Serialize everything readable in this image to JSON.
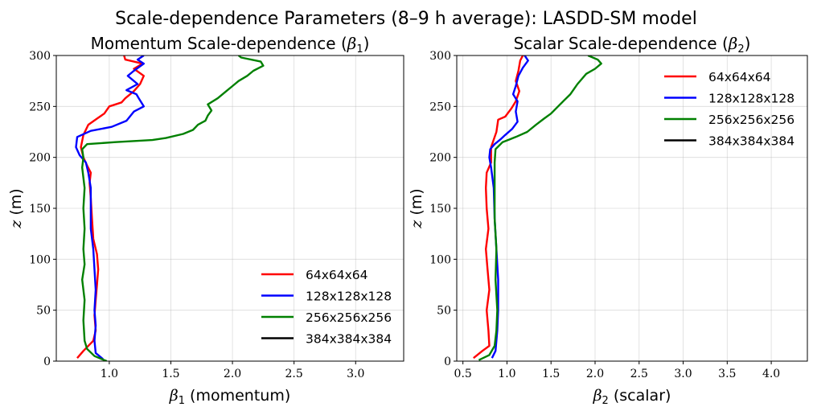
{
  "figure_title": "Scale-dependence Parameters (8–9 h average): LASDD-SM model",
  "colors": {
    "64x64x64": "#ff0000",
    "128x128x128": "#0000ff",
    "256x256x256": "#008000",
    "384x384x384": "#000000"
  },
  "chart_data": [
    {
      "type": "line",
      "title": "Momentum Scale-dependence (β1)",
      "title_text": "Momentum Scale-dependence (",
      "title_sym": "β",
      "title_sub": "1",
      "xlabel_sym": "β",
      "xlabel_sub": "1",
      "xlabel_text": " (momentum)",
      "ylabel_sym": "z",
      "ylabel_text": " (m)",
      "xlim": [
        0.57,
        3.39
      ],
      "ylim": [
        0,
        300
      ],
      "xticks": [
        1.0,
        1.5,
        2.0,
        2.5,
        3.0
      ],
      "xtick_labels": [
        "1.0",
        "1.5",
        "2.0",
        "2.5",
        "3.0"
      ],
      "yticks": [
        0,
        50,
        100,
        150,
        200,
        250,
        300
      ],
      "ytick_labels": [
        "0",
        "50",
        "100",
        "150",
        "200",
        "250",
        "300"
      ],
      "grid": true,
      "legend_position": "lower right",
      "series": [
        {
          "name": "64x64x64",
          "color": "#ff0000",
          "points": [
            [
              0.74,
              3
            ],
            [
              0.79,
              10
            ],
            [
              0.87,
              20
            ],
            [
              0.89,
              30
            ],
            [
              0.88,
              45
            ],
            [
              0.89,
              60
            ],
            [
              0.9,
              75
            ],
            [
              0.91,
              90
            ],
            [
              0.9,
              105
            ],
            [
              0.87,
              120
            ],
            [
              0.86,
              140
            ],
            [
              0.85,
              160
            ],
            [
              0.84,
              175
            ],
            [
              0.85,
              185
            ],
            [
              0.82,
              192
            ],
            [
              0.79,
              200
            ],
            [
              0.77,
              210
            ],
            [
              0.79,
              222
            ],
            [
              0.83,
              232
            ],
            [
              0.9,
              238
            ],
            [
              0.96,
              243
            ],
            [
              1.0,
              250
            ],
            [
              1.1,
              254
            ],
            [
              1.13,
              258
            ],
            [
              1.2,
              265
            ],
            [
              1.25,
              272
            ],
            [
              1.28,
              280
            ],
            [
              1.2,
              287
            ],
            [
              1.27,
              292
            ],
            [
              1.13,
              296
            ],
            [
              1.12,
              300
            ]
          ]
        },
        {
          "name": "128x128x128",
          "color": "#0000ff",
          "points": [
            [
              0.95,
              2
            ],
            [
              0.89,
              8
            ],
            [
              0.88,
              20
            ],
            [
              0.89,
              35
            ],
            [
              0.88,
              50
            ],
            [
              0.89,
              70
            ],
            [
              0.88,
              90
            ],
            [
              0.87,
              110
            ],
            [
              0.85,
              130
            ],
            [
              0.85,
              150
            ],
            [
              0.85,
              170
            ],
            [
              0.83,
              185
            ],
            [
              0.81,
              195
            ],
            [
              0.76,
              202
            ],
            [
              0.73,
              210
            ],
            [
              0.74,
              220
            ],
            [
              0.85,
              226
            ],
            [
              1.02,
              230
            ],
            [
              1.14,
              236
            ],
            [
              1.2,
              245
            ],
            [
              1.28,
              250
            ],
            [
              1.24,
              258
            ],
            [
              1.22,
              262
            ],
            [
              1.14,
              266
            ],
            [
              1.23,
              272
            ],
            [
              1.15,
              280
            ],
            [
              1.2,
              285
            ],
            [
              1.28,
              292
            ],
            [
              1.23,
              296
            ],
            [
              1.28,
              300
            ]
          ]
        },
        {
          "name": "256x256x256",
          "color": "#008000",
          "points": [
            [
              0.98,
              0
            ],
            [
              0.88,
              5
            ],
            [
              0.82,
              12
            ],
            [
              0.8,
              20
            ],
            [
              0.79,
              40
            ],
            [
              0.8,
              60
            ],
            [
              0.78,
              80
            ],
            [
              0.8,
              95
            ],
            [
              0.79,
              110
            ],
            [
              0.8,
              130
            ],
            [
              0.79,
              150
            ],
            [
              0.8,
              170
            ],
            [
              0.78,
              190
            ],
            [
              0.79,
              200
            ],
            [
              0.78,
              208
            ],
            [
              0.82,
              213
            ],
            [
              1.05,
              215
            ],
            [
              1.35,
              217
            ],
            [
              1.46,
              219
            ],
            [
              1.6,
              223
            ],
            [
              1.68,
              227
            ],
            [
              1.72,
              232
            ],
            [
              1.78,
              236
            ],
            [
              1.8,
              241
            ],
            [
              1.83,
              246
            ],
            [
              1.8,
              252
            ],
            [
              1.88,
              258
            ],
            [
              1.95,
              265
            ],
            [
              2.0,
              270
            ],
            [
              2.05,
              275
            ],
            [
              2.12,
              280
            ],
            [
              2.17,
              285
            ],
            [
              2.25,
              290
            ],
            [
              2.23,
              294
            ],
            [
              2.07,
              298
            ],
            [
              2.05,
              300
            ]
          ]
        },
        {
          "name": "384x384x384",
          "color": "#000000",
          "points": []
        }
      ]
    },
    {
      "type": "line",
      "title": "Scalar Scale-dependence (β2)",
      "title_text": "Scalar Scale-dependence (",
      "title_sym": "β",
      "title_sub": "2",
      "xlabel_sym": "β",
      "xlabel_sub": "2",
      "xlabel_text": " (scalar)",
      "ylabel_sym": "z",
      "ylabel_text": " (m)",
      "xlim": [
        0.43,
        4.41
      ],
      "ylim": [
        0,
        300
      ],
      "xticks": [
        0.5,
        1.0,
        1.5,
        2.0,
        2.5,
        3.0,
        3.5,
        4.0
      ],
      "xtick_labels": [
        "0.5",
        "1.0",
        "1.5",
        "2.0",
        "2.5",
        "3.0",
        "3.5",
        "4.0"
      ],
      "yticks": [
        0,
        50,
        100,
        150,
        200,
        250,
        300
      ],
      "ytick_labels": [
        "0",
        "50",
        "100",
        "150",
        "200",
        "250",
        "300"
      ],
      "grid": true,
      "legend_position": "upper right",
      "series": [
        {
          "name": "64x64x64",
          "color": "#ff0000",
          "points": [
            [
              0.62,
              3
            ],
            [
              0.72,
              10
            ],
            [
              0.8,
              15
            ],
            [
              0.79,
              30
            ],
            [
              0.77,
              50
            ],
            [
              0.8,
              70
            ],
            [
              0.78,
              90
            ],
            [
              0.76,
              110
            ],
            [
              0.79,
              130
            ],
            [
              0.77,
              150
            ],
            [
              0.76,
              170
            ],
            [
              0.77,
              185
            ],
            [
              0.82,
              195
            ],
            [
              0.82,
              210
            ],
            [
              0.88,
              225
            ],
            [
              0.9,
              237
            ],
            [
              0.98,
              240
            ],
            [
              1.05,
              248
            ],
            [
              1.1,
              255
            ],
            [
              1.14,
              265
            ],
            [
              1.1,
              275
            ],
            [
              1.13,
              285
            ],
            [
              1.15,
              295
            ],
            [
              1.18,
              300
            ]
          ]
        },
        {
          "name": "128x128x128",
          "color": "#0000ff",
          "points": [
            [
              0.83,
              3
            ],
            [
              0.87,
              10
            ],
            [
              0.89,
              30
            ],
            [
              0.9,
              50
            ],
            [
              0.9,
              80
            ],
            [
              0.88,
              110
            ],
            [
              0.86,
              140
            ],
            [
              0.85,
              170
            ],
            [
              0.82,
              190
            ],
            [
              0.8,
              200
            ],
            [
              0.81,
              208
            ],
            [
              0.86,
              213
            ],
            [
              0.93,
              218
            ],
            [
              0.98,
              222
            ],
            [
              1.06,
              228
            ],
            [
              1.12,
              235
            ],
            [
              1.1,
              245
            ],
            [
              1.12,
              255
            ],
            [
              1.07,
              262
            ],
            [
              1.1,
              270
            ],
            [
              1.13,
              280
            ],
            [
              1.18,
              288
            ],
            [
              1.24,
              295
            ],
            [
              1.2,
              300
            ]
          ]
        },
        {
          "name": "256x256x256",
          "color": "#008000",
          "points": [
            [
              0.68,
              1
            ],
            [
              0.8,
              6
            ],
            [
              0.86,
              15
            ],
            [
              0.88,
              30
            ],
            [
              0.89,
              50
            ],
            [
              0.87,
              80
            ],
            [
              0.88,
              110
            ],
            [
              0.86,
              140
            ],
            [
              0.86,
              170
            ],
            [
              0.86,
              195
            ],
            [
              0.87,
              208
            ],
            [
              0.95,
              215
            ],
            [
              1.1,
              220
            ],
            [
              1.23,
              225
            ],
            [
              1.33,
              232
            ],
            [
              1.42,
              238
            ],
            [
              1.5,
              243
            ],
            [
              1.58,
              250
            ],
            [
              1.65,
              256
            ],
            [
              1.72,
              262
            ],
            [
              1.76,
              267
            ],
            [
              1.8,
              272
            ],
            [
              1.85,
              277
            ],
            [
              1.9,
              282
            ],
            [
              2.0,
              287
            ],
            [
              2.07,
              292
            ],
            [
              2.03,
              296
            ],
            [
              1.92,
              300
            ]
          ]
        },
        {
          "name": "384x384x384",
          "color": "#000000",
          "points": []
        }
      ]
    }
  ]
}
